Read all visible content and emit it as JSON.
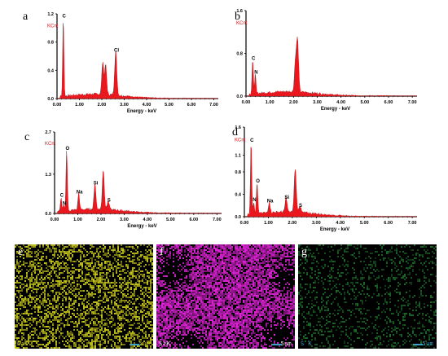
{
  "chart_data": [
    {
      "type": "area",
      "panel": "a",
      "ylabel": "KCnt",
      "xlabel": "Energy - keV",
      "xlim": [
        0,
        7.2
      ],
      "ylim": [
        0,
        1.2
      ],
      "x_ticks": [
        "0.00",
        "1.00",
        "2.00",
        "3.00",
        "4.00",
        "5.00",
        "6.00",
        "7.00"
      ],
      "y_ticks": [
        "0.0",
        "0.4",
        "0.8",
        "1.2"
      ],
      "peaks": [
        {
          "label": "C",
          "x": 0.28,
          "y": 1.1
        },
        {
          "label": "",
          "x": 2.04,
          "y": 0.46
        },
        {
          "label": "",
          "x": 2.17,
          "y": 0.42
        },
        {
          "label": "Cl",
          "x": 2.62,
          "y": 0.62
        }
      ]
    },
    {
      "type": "area",
      "panel": "b",
      "ylabel": "KCnt",
      "xlabel": "Energy - keV",
      "xlim": [
        0,
        7.2
      ],
      "ylim": [
        0,
        1.6
      ],
      "x_ticks": [
        "0.00",
        "1.00",
        "2.00",
        "3.00",
        "4.00",
        "5.00",
        "6.00",
        "7.00"
      ],
      "y_ticks": [
        "0.0",
        "0.8",
        "1.6"
      ],
      "peaks": [
        {
          "label": "C",
          "x": 0.28,
          "y": 0.62
        },
        {
          "label": "N",
          "x": 0.39,
          "y": 0.36
        },
        {
          "label": "",
          "x": 2.08,
          "y": 0.55
        },
        {
          "label": "",
          "x": 2.17,
          "y": 0.95
        }
      ]
    },
    {
      "type": "area",
      "panel": "c",
      "ylabel": "KCnt",
      "xlabel": "Energy - keV",
      "xlim": [
        0,
        7.2
      ],
      "ylim": [
        0,
        2.7
      ],
      "x_ticks": [
        "0.00",
        "1.00",
        "2.00",
        "3.00",
        "4.00",
        "5.00",
        "6.00",
        "7.00"
      ],
      "y_ticks": [
        "0.0",
        "1.3",
        "2.7"
      ],
      "peaks": [
        {
          "label": "C",
          "x": 0.28,
          "y": 0.45
        },
        {
          "label": "N",
          "x": 0.39,
          "y": 0.18
        },
        {
          "label": "O",
          "x": 0.52,
          "y": 2.0
        },
        {
          "label": "Na",
          "x": 1.04,
          "y": 0.55
        },
        {
          "label": "Si",
          "x": 1.74,
          "y": 0.85
        },
        {
          "label": "",
          "x": 2.1,
          "y": 1.3
        },
        {
          "label": "S",
          "x": 2.31,
          "y": 0.28
        }
      ]
    },
    {
      "type": "area",
      "panel": "d",
      "ylabel": "KCnt",
      "xlabel": "Energy - keV",
      "xlim": [
        0,
        7.2
      ],
      "ylim": [
        0,
        1.6
      ],
      "x_ticks": [
        "0.00",
        "1.00",
        "2.00",
        "3.00",
        "4.00",
        "5.00",
        "6.00",
        "7.00"
      ],
      "y_ticks": [
        "0.0",
        "0.4",
        "0.8",
        "1.1",
        "1.6"
      ],
      "peaks": [
        {
          "label": "C",
          "x": 0.28,
          "y": 1.28
        },
        {
          "label": "N",
          "x": 0.39,
          "y": 0.22
        },
        {
          "label": "O",
          "x": 0.53,
          "y": 0.55
        },
        {
          "label": "Na",
          "x": 1.04,
          "y": 0.2
        },
        {
          "label": "Si",
          "x": 1.74,
          "y": 0.26
        },
        {
          "label": "",
          "x": 2.12,
          "y": 0.78
        },
        {
          "label": "S",
          "x": 2.31,
          "y": 0.12
        }
      ]
    }
  ],
  "maps": [
    {
      "panel": "e",
      "label": "NaK",
      "scale": "5um",
      "color": "#c8c81e",
      "density": 0.45
    },
    {
      "panel": "f",
      "label": "SiK",
      "scale": "5um",
      "color": "#e024d8",
      "density": 0.82
    },
    {
      "panel": "g",
      "label": "S K",
      "scale": "5um",
      "color": "#1e6a2a",
      "density": 0.22
    }
  ]
}
